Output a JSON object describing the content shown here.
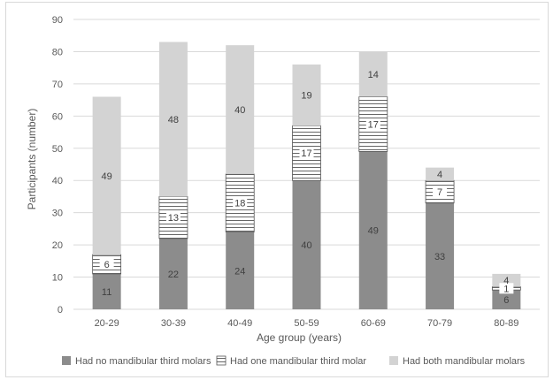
{
  "chart_data": {
    "type": "bar",
    "stacked": true,
    "categories": [
      "20-29",
      "30-39",
      "40-49",
      "50-59",
      "60-69",
      "70-79",
      "80-89"
    ],
    "series": [
      {
        "name": "Had no mandibular third molars",
        "values": [
          11,
          22,
          24,
          40,
          49,
          33,
          6
        ],
        "color": "#8c8c8c",
        "pattern": "solid"
      },
      {
        "name": "Had one mandibular third molar",
        "values": [
          6,
          13,
          18,
          17,
          17,
          7,
          1
        ],
        "color": "#ffffff",
        "pattern": "horizontal-stripes"
      },
      {
        "name": "Had both mandibular molars",
        "values": [
          49,
          48,
          40,
          19,
          14,
          4,
          4
        ],
        "color": "#d3d3d3",
        "pattern": "solid"
      }
    ],
    "xlabel": "Age group (years)",
    "ylabel": "Participants (number)",
    "ylim": [
      0,
      90
    ],
    "yticks": [
      0,
      10,
      20,
      30,
      40,
      50,
      60,
      70,
      80,
      90
    ],
    "grid": true,
    "legend_position": "bottom"
  }
}
